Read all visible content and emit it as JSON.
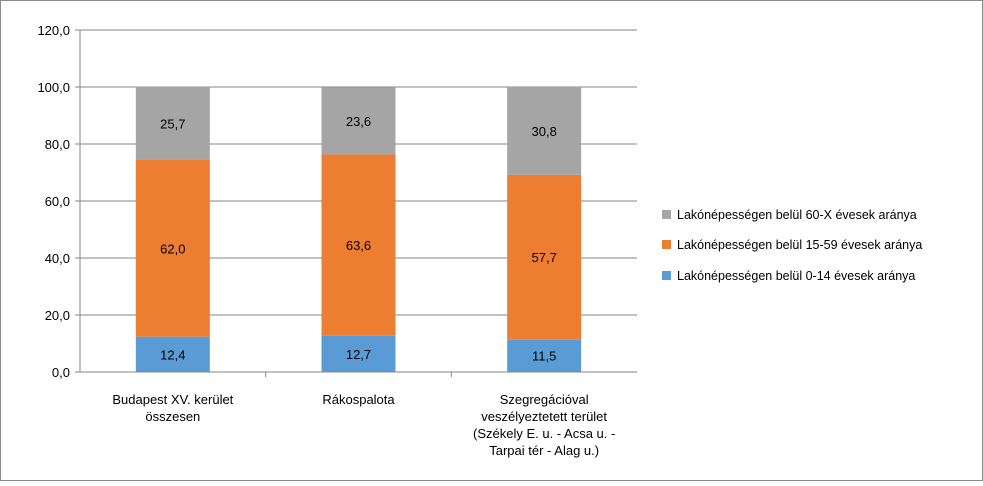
{
  "chart_data": {
    "type": "bar",
    "stacked": true,
    "title": "",
    "xlabel": "",
    "ylabel": "",
    "ylim": [
      0,
      120
    ],
    "yticks": [
      "0,0",
      "20,0",
      "40,0",
      "60,0",
      "80,0",
      "100,0",
      "120,0"
    ],
    "grid": true,
    "legend_position": "right",
    "categories": [
      [
        "Budapest XV. kerület",
        "összesen"
      ],
      [
        "Rákospalota"
      ],
      [
        "Szegregációval",
        "veszélyeztetett terület",
        "(Székely E. u. - Acsa u. -",
        "Tarpai tér - Alag u.)"
      ]
    ],
    "series": [
      {
        "name": "Lakónépességen belül 0-14 évesek aránya",
        "color": "#5B9BD5",
        "values": [
          12.4,
          12.7,
          11.5
        ],
        "labels": [
          "12,4",
          "12,7",
          "11,5"
        ]
      },
      {
        "name": "Lakónépességen belül 15-59 évesek aránya",
        "color": "#ED7D31",
        "values": [
          62.0,
          63.6,
          57.7
        ],
        "labels": [
          "62,0",
          "63,6",
          "57,7"
        ]
      },
      {
        "name": "Lakónépességen belül 60-X évesek aránya",
        "color": "#A5A5A5",
        "values": [
          25.7,
          23.6,
          30.8
        ],
        "labels": [
          "25,7",
          "23,6",
          "30,8"
        ]
      }
    ],
    "legend_order": [
      2,
      1,
      0
    ]
  }
}
